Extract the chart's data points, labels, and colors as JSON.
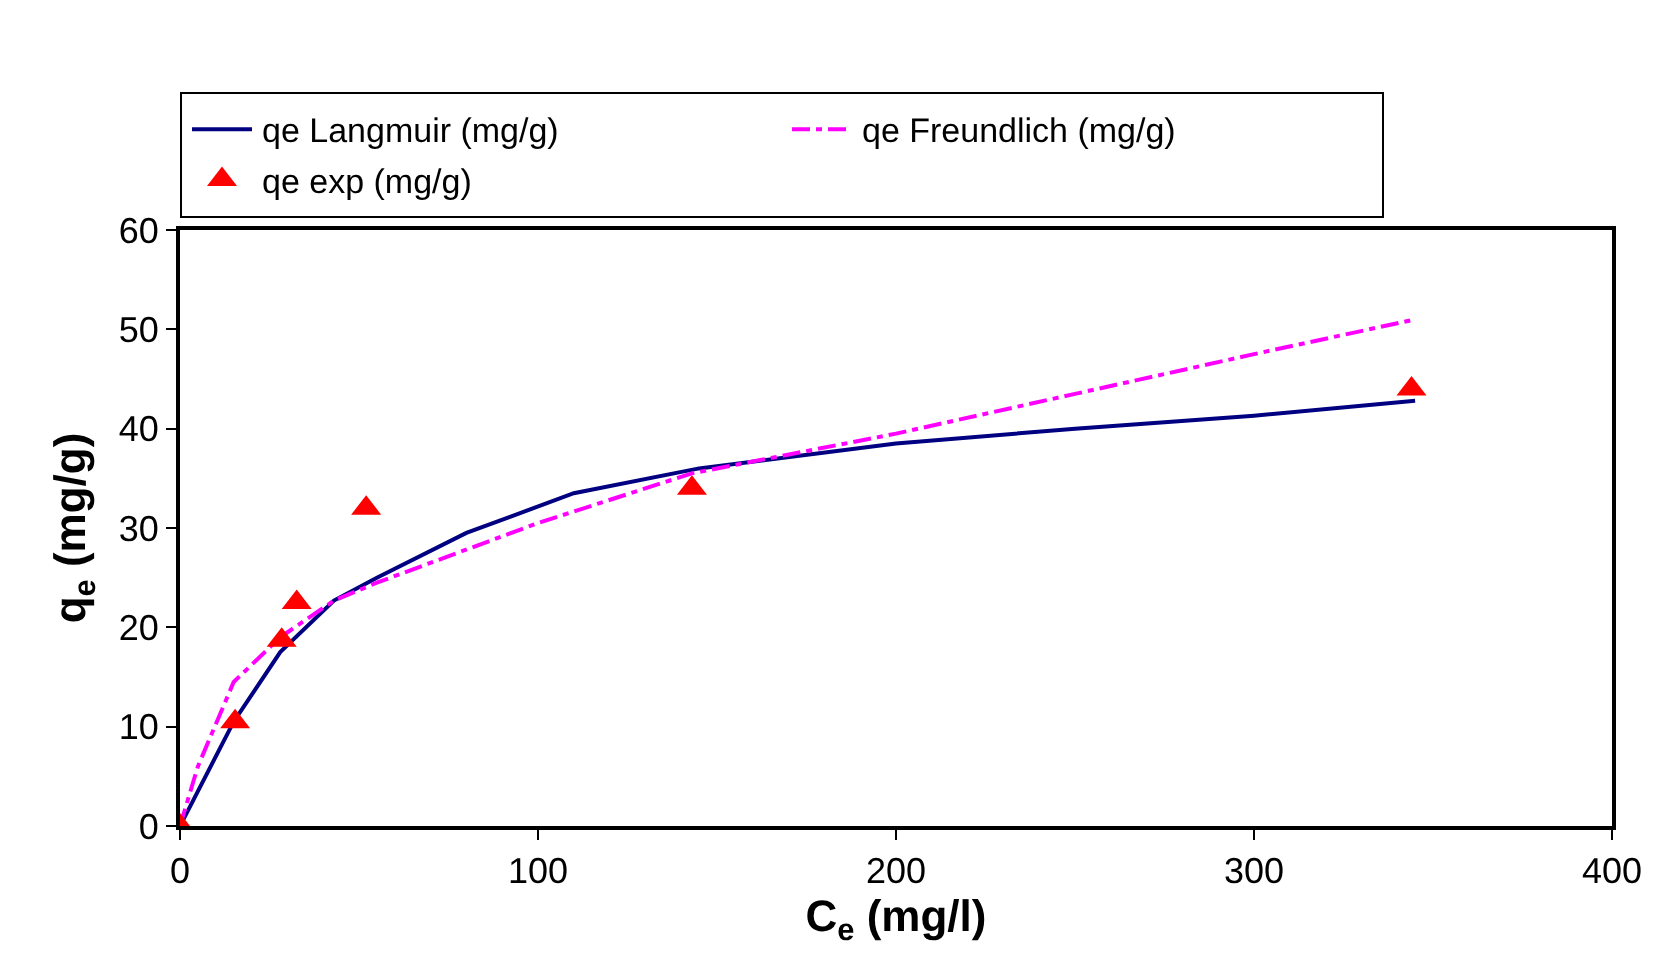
{
  "chart_data": {
    "type": "line",
    "xlabel": "C$_{e}$ (mg/l)",
    "ylabel": "q$_{e}$ (mg/g)",
    "xlim": [
      0,
      400
    ],
    "xticks": [
      0,
      100,
      200,
      300,
      400
    ],
    "ylim": [
      0,
      60
    ],
    "yticks": [
      0,
      10,
      20,
      30,
      40,
      50,
      60
    ],
    "legend": "top",
    "series": [
      {
        "name": "qe Langmuir (mg/g)",
        "color": "#000080",
        "line_style": "solid",
        "marker": "none",
        "x": [
          0,
          15,
          28,
          43,
          55,
          80,
          110,
          145,
          200,
          250,
          300,
          345
        ],
        "values": [
          0,
          10.5,
          17.5,
          22.7,
          25,
          29.5,
          33.5,
          36,
          38.5,
          40,
          41.3,
          42.8
        ]
      },
      {
        "name": "qe Freundlich (mg/g)",
        "color": "#ff00ff",
        "line_style": "dashed",
        "marker": "none",
        "x": [
          0,
          5,
          15,
          28,
          43,
          55,
          100,
          143,
          200,
          250,
          300,
          345
        ],
        "values": [
          0,
          6,
          14.5,
          19,
          22.7,
          24.5,
          30.5,
          35.5,
          39.5,
          43.5,
          47.5,
          51
        ]
      },
      {
        "name": "qe exp (mg/g)",
        "type": "scatter",
        "color": "#ff0000",
        "marker": "triangle",
        "x": [
          0,
          15.4,
          28.4,
          32.6,
          52,
          143,
          344
        ],
        "values": [
          0,
          10.5,
          18.7,
          22.5,
          32,
          34,
          44
        ]
      }
    ]
  }
}
